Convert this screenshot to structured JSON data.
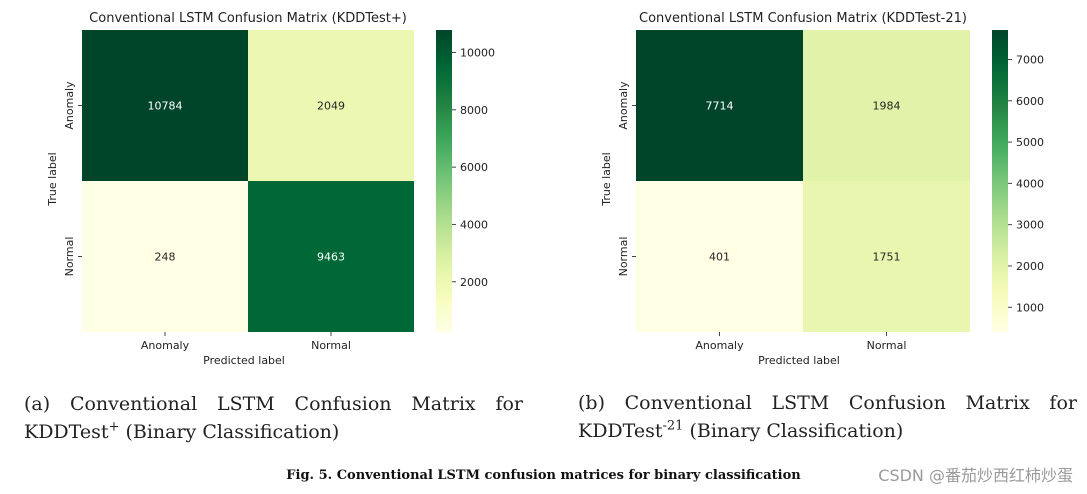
{
  "chart_data": [
    {
      "type": "heatmap",
      "title": "Conventional LSTM Confusion Matrix (KDDTest+)",
      "xlabel": "Predicted label",
      "ylabel": "True label",
      "row_labels": [
        "Anomaly",
        "Normal"
      ],
      "col_labels": [
        "Anomaly",
        "Normal"
      ],
      "values": [
        [
          10784,
          2049
        ],
        [
          248,
          9463
        ]
      ],
      "colormap": "YlGn",
      "colorbar": {
        "min": 248,
        "max": 10784,
        "ticks": [
          2000,
          4000,
          6000,
          8000,
          10000
        ]
      }
    },
    {
      "type": "heatmap",
      "title": "Conventional LSTM Confusion Matrix (KDDTest-21)",
      "xlabel": "Predicted label",
      "ylabel": "True label",
      "row_labels": [
        "Anomaly",
        "Normal"
      ],
      "col_labels": [
        "Anomaly",
        "Normal"
      ],
      "values": [
        [
          7714,
          1984
        ],
        [
          401,
          1751
        ]
      ],
      "colormap": "YlGn",
      "colorbar": {
        "min": 401,
        "max": 7714,
        "ticks": [
          1000,
          2000,
          3000,
          4000,
          5000,
          6000,
          7000
        ]
      }
    }
  ],
  "subcaptions": [
    {
      "label": "(a)",
      "words": [
        "Conventional",
        "LSTM",
        "Confusion",
        "Matrix",
        "for"
      ],
      "dataset": "KDDTest",
      "superscript": "+",
      "suffix": " (Binary Classification)"
    },
    {
      "label": "(b)",
      "words": [
        "Conventional",
        "LSTM",
        "Confusion",
        "Matrix",
        "for"
      ],
      "dataset": "KDDTest",
      "superscript": "-21",
      "suffix": " (Binary Classification)"
    }
  ],
  "figure_caption": "Fig. 5.  Conventional LSTM confusion matrices for binary classification",
  "watermark": "CSDN @番茄炒西红柿炒蛋"
}
